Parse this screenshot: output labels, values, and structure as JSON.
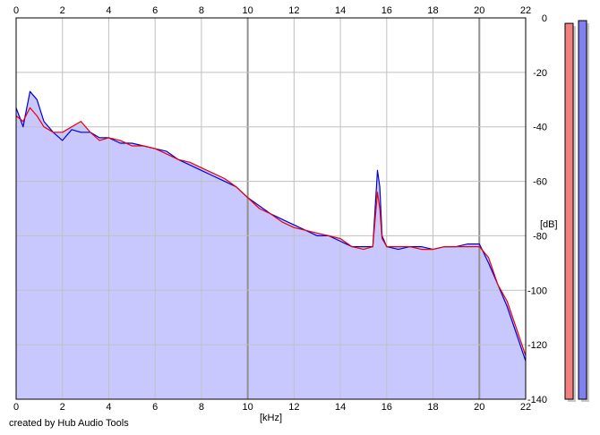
{
  "credit": "created by Hub Audio Tools",
  "chart_data": {
    "type": "line",
    "xlabel": "[kHz]",
    "ylabel": "[dB]",
    "xlim": [
      0,
      22
    ],
    "ylim": [
      -140,
      0
    ],
    "x_ticks": [
      "0",
      "2",
      "4",
      "6",
      "8",
      "10",
      "12",
      "14",
      "16",
      "18",
      "20",
      "22"
    ],
    "y_ticks": [
      "0",
      "-20",
      "-40",
      "-60",
      "-80",
      "-100",
      "-120",
      "-140"
    ],
    "grid": true,
    "series": [
      {
        "color": "#0000dd",
        "x": [
          0,
          0.3,
          0.6,
          0.9,
          1.2,
          1.6,
          2.0,
          2.4,
          2.8,
          3.2,
          3.6,
          4.0,
          4.5,
          5.0,
          5.5,
          6.0,
          6.5,
          7.0,
          7.5,
          8.0,
          8.5,
          9.0,
          9.5,
          10.0,
          10.5,
          11.0,
          11.5,
          12.0,
          12.5,
          13.0,
          13.5,
          14.0,
          14.5,
          15.0,
          15.4,
          15.6,
          15.7,
          15.8,
          16.0,
          16.5,
          17.0,
          17.5,
          18.0,
          18.5,
          19.0,
          19.5,
          20.0,
          20.4,
          20.8,
          21.2,
          21.6,
          22.0
        ],
        "y": [
          -33,
          -40,
          -27,
          -30,
          -38,
          -42,
          -45,
          -41,
          -42,
          -42,
          -44,
          -44,
          -46,
          -46,
          -47,
          -48,
          -49,
          -52,
          -54,
          -56,
          -58,
          -60,
          -62,
          -66,
          -69,
          -72,
          -74,
          -76,
          -78,
          -80,
          -80,
          -82,
          -84,
          -84,
          -84,
          -56,
          -62,
          -80,
          -84,
          -85,
          -84,
          -84,
          -85,
          -84,
          -84,
          -83,
          -83,
          -90,
          -98,
          -106,
          -116,
          -126
        ]
      },
      {
        "color": "#ee0000",
        "x": [
          0,
          0.3,
          0.6,
          0.9,
          1.2,
          1.6,
          2.0,
          2.4,
          2.8,
          3.2,
          3.6,
          4.0,
          4.5,
          5.0,
          5.5,
          6.0,
          6.5,
          7.0,
          7.5,
          8.0,
          8.5,
          9.0,
          9.5,
          10.0,
          10.5,
          11.0,
          11.5,
          12.0,
          12.5,
          13.0,
          13.5,
          14.0,
          14.5,
          15.0,
          15.4,
          15.6,
          15.7,
          15.8,
          16.0,
          16.5,
          17.0,
          17.5,
          18.0,
          18.5,
          19.0,
          19.5,
          20.0,
          20.4,
          20.8,
          21.2,
          21.6,
          22.0
        ],
        "y": [
          -36,
          -38,
          -33,
          -36,
          -40,
          -42,
          -42,
          -40,
          -38,
          -42,
          -45,
          -44,
          -45,
          -47,
          -47,
          -48,
          -50,
          -52,
          -53,
          -55,
          -57,
          -59,
          -62,
          -66,
          -70,
          -72,
          -75,
          -77,
          -78,
          -79,
          -80,
          -81,
          -84,
          -85,
          -84,
          -64,
          -70,
          -81,
          -84,
          -84,
          -84,
          -85,
          -85,
          -84,
          -84,
          -84,
          -84,
          -88,
          -98,
          -104,
          -114,
          -124
        ]
      }
    ],
    "meters": [
      {
        "level_db": -2
      },
      {
        "level_db": -1
      }
    ],
    "colors": {
      "fill": "#c8c8ff",
      "grid": "#c0c0c0",
      "grid_major": "#909090",
      "plot_background": "#ffffff",
      "meter_left": "#f28080",
      "meter_right": "#8080f0"
    }
  }
}
